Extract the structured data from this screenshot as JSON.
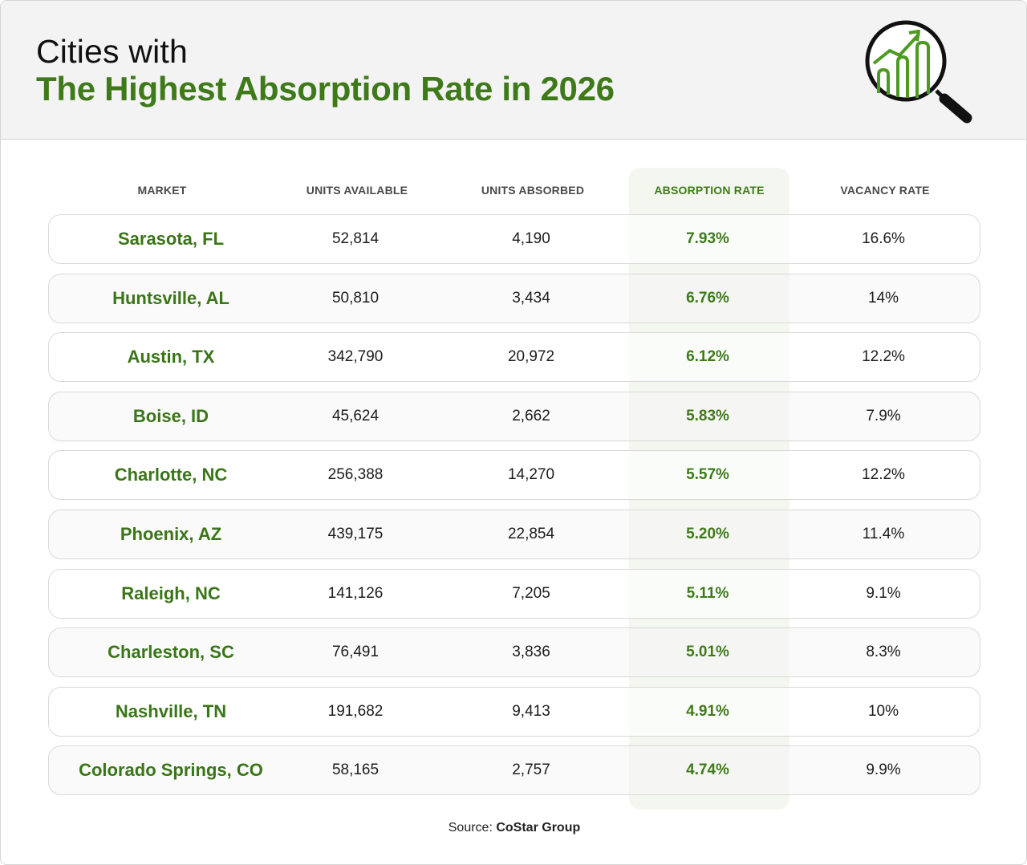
{
  "header": {
    "title_line1": "Cities with",
    "title_line2": "The Highest Absorption Rate in 2026",
    "icon": "magnifier-growth-chart-icon"
  },
  "colors": {
    "accent_green": "#3f7a1a",
    "header_bg": "#f3f3f3",
    "highlight_column_bg": "#f3f7ef"
  },
  "chart_data": {
    "type": "table",
    "title": "The Highest Absorption Rate in 2026",
    "columns": [
      "MARKET",
      "UNITS AVAILABLE",
      "UNITS ABSORBED",
      "ABSORPTION RATE",
      "VACANCY RATE"
    ],
    "highlighted_column": "ABSORPTION RATE",
    "rows": [
      {
        "market": "Sarasota, FL",
        "units_available": "52,814",
        "units_absorbed": "4,190",
        "absorption_rate": "7.93%",
        "vacancy_rate": "16.6%"
      },
      {
        "market": "Huntsville, AL",
        "units_available": "50,810",
        "units_absorbed": "3,434",
        "absorption_rate": "6.76%",
        "vacancy_rate": "14%"
      },
      {
        "market": "Austin, TX",
        "units_available": "342,790",
        "units_absorbed": "20,972",
        "absorption_rate": "6.12%",
        "vacancy_rate": "12.2%"
      },
      {
        "market": "Boise, ID",
        "units_available": "45,624",
        "units_absorbed": "2,662",
        "absorption_rate": "5.83%",
        "vacancy_rate": "7.9%"
      },
      {
        "market": "Charlotte, NC",
        "units_available": "256,388",
        "units_absorbed": "14,270",
        "absorption_rate": "5.57%",
        "vacancy_rate": "12.2%"
      },
      {
        "market": "Phoenix, AZ",
        "units_available": "439,175",
        "units_absorbed": "22,854",
        "absorption_rate": "5.20%",
        "vacancy_rate": "11.4%"
      },
      {
        "market": "Raleigh, NC",
        "units_available": "141,126",
        "units_absorbed": "7,205",
        "absorption_rate": "5.11%",
        "vacancy_rate": "9.1%"
      },
      {
        "market": "Charleston, SC",
        "units_available": "76,491",
        "units_absorbed": "3,836",
        "absorption_rate": "5.01%",
        "vacancy_rate": "8.3%"
      },
      {
        "market": "Nashville, TN",
        "units_available": "191,682",
        "units_absorbed": "9,413",
        "absorption_rate": "4.91%",
        "vacancy_rate": "10%"
      },
      {
        "market": "Colorado Springs, CO",
        "units_available": "58,165",
        "units_absorbed": "2,757",
        "absorption_rate": "4.74%",
        "vacancy_rate": "9.9%"
      }
    ]
  },
  "footer": {
    "source_label": "Source:",
    "source_name": "CoStar Group"
  }
}
